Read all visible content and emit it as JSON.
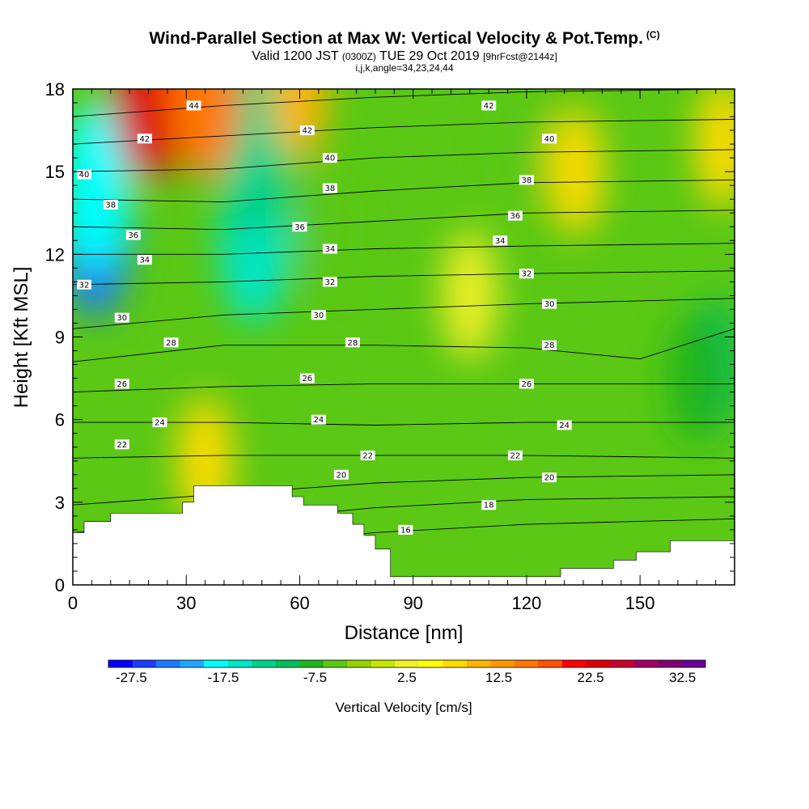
{
  "header": {
    "title": "Wind-Parallel Section at Max W: Vertical Velocity & Pot.Temp.",
    "title_mark": "(C)",
    "valid_main": "Valid 1200 JST",
    "valid_utc": "(0300Z)",
    "valid_date": "TUE 29 Oct 2019",
    "forecast": "[9hrFcst@2144z]",
    "indices": "i,j,k,angle=34,23,24,44"
  },
  "colors": {
    "palette": [
      "#0000ff",
      "#1e3cff",
      "#1e78ff",
      "#1ea8ff",
      "#00ffff",
      "#00e6c8",
      "#00d28c",
      "#00be5a",
      "#1eb41e",
      "#5ac814",
      "#96d200",
      "#c8e600",
      "#f0f028",
      "#ffff00",
      "#ffdc00",
      "#ffb400",
      "#ff9600",
      "#ff7800",
      "#ff5000",
      "#ff0000",
      "#dc0000",
      "#c80032",
      "#a00064",
      "#82006e",
      "#640096"
    ],
    "contour_line": "#000000",
    "terrain": "#ffffff"
  },
  "chart_data": {
    "type": "heatmap",
    "xlabel": "Distance [nm]",
    "ylabel": "Height [Kft MSL]",
    "xlim": [
      0,
      175
    ],
    "ylim": [
      0,
      18
    ],
    "x_ticks": [
      "0",
      "30",
      "60",
      "90",
      "120",
      "150"
    ],
    "y_ticks": [
      "0",
      "3",
      "6",
      "9",
      "12",
      "15",
      "18"
    ],
    "x_tick_values": [
      0,
      30,
      60,
      90,
      120,
      150
    ],
    "y_tick_values": [
      0,
      3,
      6,
      9,
      12,
      15,
      18
    ],
    "colorbar": {
      "label": "Vertical Velocity [cm/s]",
      "min": -30,
      "max": 35,
      "step": 2.5,
      "tick_labels": [
        "-27.5",
        "-17.5",
        "-7.5",
        "2.5",
        "12.5",
        "22.5",
        "32.5"
      ],
      "tick_values": [
        -27.5,
        -17.5,
        -7.5,
        2.5,
        12.5,
        22.5,
        32.5
      ]
    },
    "vertical_velocity_features": [
      {
        "x": 6,
        "y": 12.8,
        "w": -25
      },
      {
        "x": 6,
        "y": 14.5,
        "w": -18
      },
      {
        "x": 48,
        "y": 12.5,
        "w": -17
      },
      {
        "x": 48,
        "y": 15.5,
        "w": -13
      },
      {
        "x": 20,
        "y": 17.7,
        "w": 20
      },
      {
        "x": 35,
        "y": 17.8,
        "w": 14
      },
      {
        "x": 60,
        "y": 17.8,
        "w": 8
      },
      {
        "x": 172,
        "y": 16,
        "w": 6
      },
      {
        "x": 133,
        "y": 15,
        "w": 5
      },
      {
        "x": 170,
        "y": 8,
        "w": -11
      },
      {
        "x": 165,
        "y": 7.5,
        "w": -8
      },
      {
        "x": 35,
        "y": 4.5,
        "w": 5
      },
      {
        "x": 105,
        "y": 10.5,
        "w": 0
      },
      {
        "x": 118,
        "y": 16,
        "w": -6
      },
      {
        "x": 67,
        "y": 13,
        "w": -6
      }
    ],
    "theta_contours": [
      {
        "theta": 16,
        "points": [
          [
            0,
            1.0
          ],
          [
            40,
            1.4
          ],
          [
            80,
            1.9
          ],
          [
            120,
            2.2
          ],
          [
            175,
            2.4
          ]
        ]
      },
      {
        "theta": 18,
        "points": [
          [
            0,
            1.9
          ],
          [
            40,
            2.3
          ],
          [
            80,
            2.8
          ],
          [
            120,
            3.1
          ],
          [
            175,
            3.2
          ]
        ]
      },
      {
        "theta": 20,
        "points": [
          [
            0,
            2.9
          ],
          [
            40,
            3.3
          ],
          [
            80,
            3.7
          ],
          [
            120,
            3.9
          ],
          [
            175,
            4.0
          ]
        ]
      },
      {
        "theta": 22,
        "points": [
          [
            0,
            4.6
          ],
          [
            40,
            4.7
          ],
          [
            80,
            4.7
          ],
          [
            120,
            4.7
          ],
          [
            175,
            4.6
          ]
        ]
      },
      {
        "theta": 24,
        "points": [
          [
            0,
            5.9
          ],
          [
            40,
            5.9
          ],
          [
            80,
            5.8
          ],
          [
            120,
            5.9
          ],
          [
            175,
            5.9
          ]
        ]
      },
      {
        "theta": 26,
        "points": [
          [
            0,
            7.0
          ],
          [
            40,
            7.2
          ],
          [
            80,
            7.3
          ],
          [
            120,
            7.3
          ],
          [
            175,
            7.3
          ]
        ]
      },
      {
        "theta": 28,
        "points": [
          [
            0,
            8.1
          ],
          [
            40,
            8.7
          ],
          [
            80,
            8.7
          ],
          [
            120,
            8.6
          ],
          [
            150,
            8.2
          ],
          [
            175,
            9.3
          ]
        ]
      },
      {
        "theta": 30,
        "points": [
          [
            0,
            9.3
          ],
          [
            40,
            9.8
          ],
          [
            80,
            10.0
          ],
          [
            120,
            10.2
          ],
          [
            175,
            10.4
          ]
        ]
      },
      {
        "theta": 32,
        "points": [
          [
            0,
            10.9
          ],
          [
            40,
            11.0
          ],
          [
            80,
            11.2
          ],
          [
            120,
            11.3
          ],
          [
            175,
            11.4
          ]
        ]
      },
      {
        "theta": 34,
        "points": [
          [
            0,
            12.0
          ],
          [
            40,
            12.0
          ],
          [
            80,
            12.2
          ],
          [
            120,
            12.3
          ],
          [
            175,
            12.4
          ]
        ]
      },
      {
        "theta": 36,
        "points": [
          [
            0,
            13.0
          ],
          [
            40,
            12.9
          ],
          [
            80,
            13.2
          ],
          [
            120,
            13.5
          ],
          [
            175,
            13.6
          ]
        ]
      },
      {
        "theta": 38,
        "points": [
          [
            0,
            14.0
          ],
          [
            40,
            13.9
          ],
          [
            80,
            14.3
          ],
          [
            120,
            14.6
          ],
          [
            175,
            14.7
          ]
        ]
      },
      {
        "theta": 40,
        "points": [
          [
            0,
            15.0
          ],
          [
            40,
            15.1
          ],
          [
            80,
            15.5
          ],
          [
            120,
            15.7
          ],
          [
            175,
            15.8
          ]
        ]
      },
      {
        "theta": 42,
        "points": [
          [
            0,
            16.0
          ],
          [
            40,
            16.3
          ],
          [
            80,
            16.6
          ],
          [
            120,
            16.8
          ],
          [
            175,
            16.9
          ]
        ]
      },
      {
        "theta": 44,
        "points": [
          [
            0,
            17.0
          ],
          [
            40,
            17.4
          ],
          [
            80,
            17.7
          ],
          [
            120,
            17.9
          ],
          [
            175,
            18.0
          ]
        ]
      }
    ],
    "contour_labels": [
      {
        "text": "44",
        "x": 32,
        "y": 17.4
      },
      {
        "text": "42",
        "x": 19,
        "y": 16.2
      },
      {
        "text": "42",
        "x": 62,
        "y": 16.5
      },
      {
        "text": "42",
        "x": 110,
        "y": 17.4
      },
      {
        "text": "40",
        "x": 3,
        "y": 14.9
      },
      {
        "text": "40",
        "x": 68,
        "y": 15.5
      },
      {
        "text": "40",
        "x": 126,
        "y": 16.2
      },
      {
        "text": "38",
        "x": 10,
        "y": 13.8
      },
      {
        "text": "38",
        "x": 68,
        "y": 14.4
      },
      {
        "text": "38",
        "x": 120,
        "y": 14.7
      },
      {
        "text": "36",
        "x": 16,
        "y": 12.7
      },
      {
        "text": "36",
        "x": 60,
        "y": 13.0
      },
      {
        "text": "36",
        "x": 117,
        "y": 13.4
      },
      {
        "text": "34",
        "x": 19,
        "y": 11.8
      },
      {
        "text": "34",
        "x": 68,
        "y": 12.2
      },
      {
        "text": "34",
        "x": 113,
        "y": 12.5
      },
      {
        "text": "32",
        "x": 3,
        "y": 10.9
      },
      {
        "text": "32",
        "x": 68,
        "y": 11.0
      },
      {
        "text": "32",
        "x": 120,
        "y": 11.3
      },
      {
        "text": "30",
        "x": 13,
        "y": 9.7
      },
      {
        "text": "30",
        "x": 65,
        "y": 9.8
      },
      {
        "text": "30",
        "x": 126,
        "y": 10.2
      },
      {
        "text": "28",
        "x": 26,
        "y": 8.8
      },
      {
        "text": "28",
        "x": 74,
        "y": 8.8
      },
      {
        "text": "28",
        "x": 126,
        "y": 8.7
      },
      {
        "text": "26",
        "x": 13,
        "y": 7.3
      },
      {
        "text": "26",
        "x": 62,
        "y": 7.5
      },
      {
        "text": "26",
        "x": 120,
        "y": 7.3
      },
      {
        "text": "24",
        "x": 23,
        "y": 5.9
      },
      {
        "text": "24",
        "x": 65,
        "y": 6.0
      },
      {
        "text": "24",
        "x": 130,
        "y": 5.8
      },
      {
        "text": "22",
        "x": 13,
        "y": 5.1
      },
      {
        "text": "22",
        "x": 78,
        "y": 4.7
      },
      {
        "text": "22",
        "x": 117,
        "y": 4.7
      },
      {
        "text": "20",
        "x": 71,
        "y": 4.0
      },
      {
        "text": "20",
        "x": 126,
        "y": 3.9
      },
      {
        "text": "18",
        "x": 110,
        "y": 2.9
      },
      {
        "text": "16",
        "x": 88,
        "y": 2.0
      }
    ],
    "terrain_profile": [
      [
        0,
        1.9
      ],
      [
        3,
        1.9
      ],
      [
        3,
        2.3
      ],
      [
        10,
        2.3
      ],
      [
        10,
        2.6
      ],
      [
        29,
        2.6
      ],
      [
        29,
        3.0
      ],
      [
        32,
        3.0
      ],
      [
        32,
        3.6
      ],
      [
        58,
        3.6
      ],
      [
        58,
        3.2
      ],
      [
        61,
        3.2
      ],
      [
        61,
        2.9
      ],
      [
        70,
        2.9
      ],
      [
        70,
        2.6
      ],
      [
        74,
        2.6
      ],
      [
        74,
        2.2
      ],
      [
        77,
        2.2
      ],
      [
        77,
        1.8
      ],
      [
        80,
        1.8
      ],
      [
        80,
        1.3
      ],
      [
        84,
        1.3
      ],
      [
        84,
        0.3
      ],
      [
        129,
        0.3
      ],
      [
        129,
        0.6
      ],
      [
        143,
        0.6
      ],
      [
        143,
        0.9
      ],
      [
        149,
        0.9
      ],
      [
        149,
        1.2
      ],
      [
        158,
        1.2
      ],
      [
        158,
        1.6
      ],
      [
        175,
        1.6
      ]
    ]
  }
}
